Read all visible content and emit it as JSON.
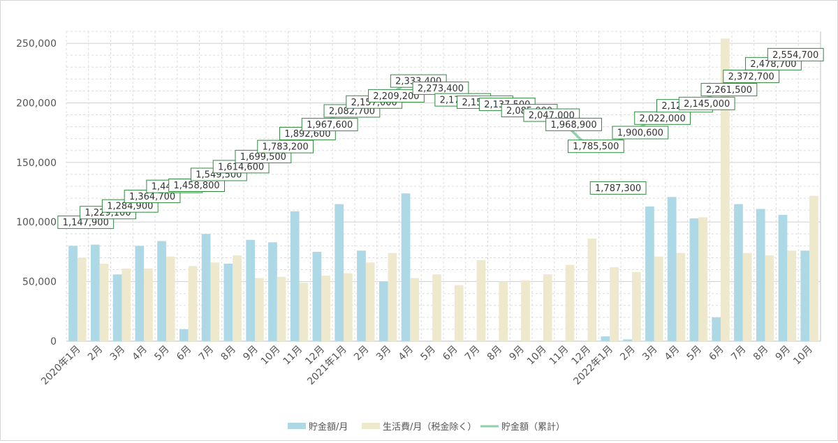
{
  "chart_data": {
    "type": "bar",
    "categories": [
      "2020年1月",
      "2月",
      "3月",
      "4月",
      "5月",
      "6月",
      "7月",
      "8月",
      "9月",
      "10月",
      "11月",
      "12月",
      "2021年1月",
      "2月",
      "3月",
      "4月",
      "5月",
      "6月",
      "7月",
      "8月",
      "9月",
      "10月",
      "11月",
      "12月",
      "2022年1月",
      "2月",
      "3月",
      "4月",
      "5月",
      "6月",
      "7月",
      "8月",
      "9月",
      "10月"
    ],
    "series": [
      {
        "name": "貯金額/月",
        "kind": "bar",
        "color": "#add8e6",
        "values": [
          80000,
          81000,
          56000,
          80000,
          84000,
          10000,
          90000,
          65000,
          85000,
          83000,
          109000,
          75000,
          115000,
          76000,
          50000,
          124000,
          null,
          null,
          null,
          null,
          null,
          null,
          null,
          null,
          4000,
          1500,
          113000,
          121000,
          103000,
          20000,
          115000,
          111000,
          106000,
          76000
        ]
      },
      {
        "name": "生活費/月（税金除く）",
        "kind": "bar",
        "color": "#eee8cd",
        "values": [
          70000,
          65000,
          61000,
          61000,
          71000,
          63000,
          66000,
          72000,
          53000,
          54000,
          49000,
          55000,
          57000,
          66000,
          74000,
          53000,
          56000,
          47000,
          68000,
          50000,
          51000,
          56000,
          64000,
          86000,
          62000,
          58000,
          71000,
          74000,
          104000,
          254000,
          74000,
          72000,
          76000,
          122000
        ]
      },
      {
        "name": "貯金額（累計）",
        "kind": "line",
        "color": "#8fd3a8",
        "axis": "cumulative",
        "values": [
          1147900,
          1229100,
          1284900,
          1364700,
          1448800,
          1458800,
          1549500,
          1614600,
          1699500,
          1783200,
          1892600,
          1967600,
          2082700,
          2157000,
          2209200,
          2333400,
          2273400,
          2175500,
          2156000,
          2137500,
          2085000,
          2047000,
          1968900,
          1785500,
          1787300,
          1900600,
          2022000,
          2125200,
          2145000,
          2261500,
          2372700,
          2478700,
          2554700,
          2554700
        ]
      }
    ],
    "data_labels": [
      "1,147,900",
      "1,229,100",
      "1,284,900",
      "1,364,700",
      "1,448,800",
      "1,458,800",
      "1,549,500",
      "1,614,600",
      "1,699,500",
      "1,783,200",
      "1,892,600",
      "1,967,600",
      "2,082,700",
      "2,157,000",
      "2,209,200",
      "2,333,400",
      "2,273,400",
      "2,175,500",
      "2,156,000",
      "2,137,500",
      "2,085,000",
      "2,047,000",
      "1,968,900",
      "1,785,500",
      "1,787,300",
      "1,900,600",
      "2,022,000",
      "2,125,200",
      "2,145,000",
      "2,261,500",
      "2,372,700",
      "2,478,700",
      "2,554,700"
    ],
    "y_ticks": [
      "0",
      "50,000",
      "100,000",
      "150,000",
      "200,000",
      "250,000"
    ],
    "ylim": [
      0,
      260000
    ],
    "grid": true,
    "legend": "bottom-center"
  }
}
